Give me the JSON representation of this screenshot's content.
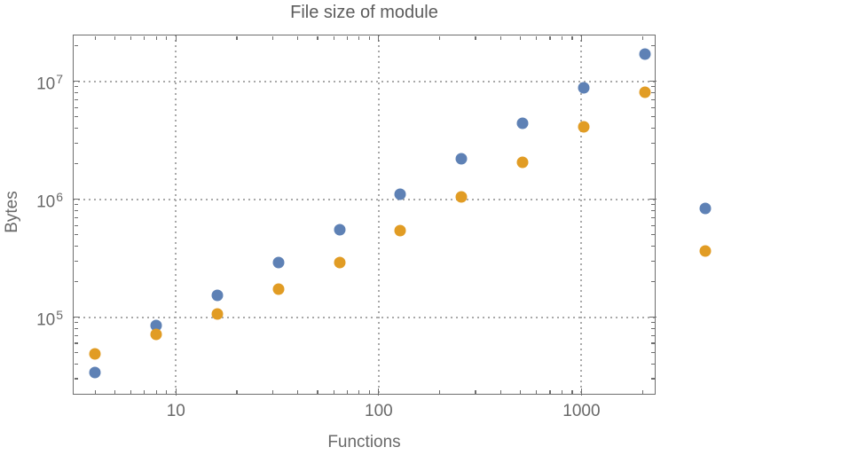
{
  "title": "File size of module",
  "chart_data": {
    "type": "scatter",
    "title": "File size of module",
    "xlabel": "Functions",
    "ylabel": "Bytes",
    "log_x": true,
    "log_y": true,
    "xlim": [
      3.1,
      2320
    ],
    "ylim": [
      22000,
      24900000
    ],
    "grid": "dotted",
    "legend": "none",
    "x": [
      4,
      8,
      16,
      32,
      64,
      128,
      256,
      512,
      1024,
      2048,
      4096
    ],
    "series": [
      {
        "name": "series-blue",
        "color": "#5E81B5",
        "values": [
          34000,
          85000,
          153000,
          289000,
          550000,
          1110000,
          2210000,
          4370000,
          8860000,
          17100000,
          840000
        ]
      },
      {
        "name": "series-orange",
        "color": "#E19C24",
        "values": [
          49000,
          71000,
          106000,
          174000,
          290000,
          540000,
          1050000,
          2070000,
          4100000,
          8130000,
          364000
        ]
      }
    ],
    "x_tick_labels": [
      {
        "value": 10,
        "label": "10"
      },
      {
        "value": 100,
        "label": "100"
      },
      {
        "value": 1000,
        "label": "1000"
      }
    ],
    "y_tick_labels": [
      {
        "value": 100000,
        "base": "10",
        "exp": "5"
      },
      {
        "value": 1000000,
        "base": "10",
        "exp": "6"
      },
      {
        "value": 10000000,
        "base": "10",
        "exp": "7"
      }
    ],
    "minor_tick_multipliers": [
      2,
      3,
      4,
      5,
      6,
      7,
      8,
      9
    ]
  },
  "colors": {
    "background": "#ffffff",
    "frame": "#6e6e6e",
    "gridline": "#a9a9a9",
    "tick_label": "#696969",
    "title": "#5c5c5c",
    "series_blue": "#5E81B5",
    "series_orange": "#E19C24"
  }
}
